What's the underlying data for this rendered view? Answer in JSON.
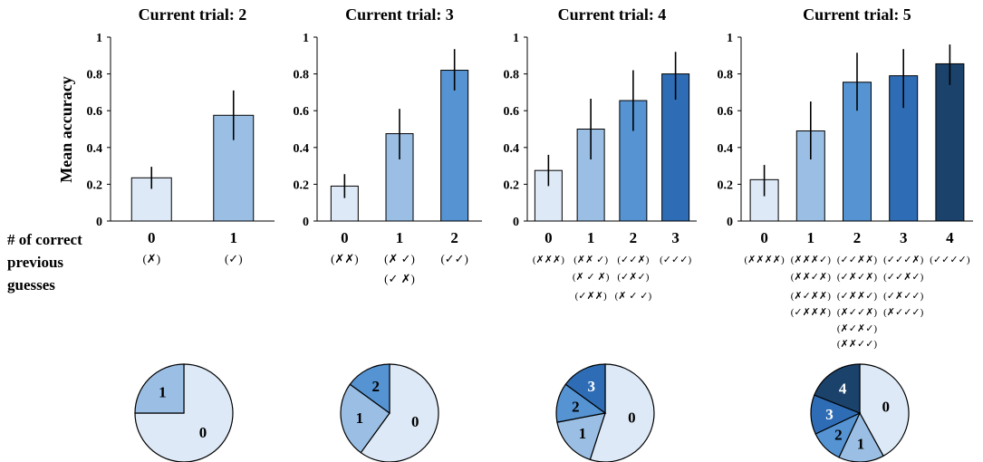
{
  "ylabel": "Mean accuracy",
  "row_label_lines": [
    "# of correct",
    "previous",
    "guesses"
  ],
  "yticks": [
    "0",
    "0.2",
    "0.4",
    "0.6",
    "0.8",
    "1"
  ],
  "colors": {
    "level0": "#dde9f7",
    "level1": "#9bbfe4",
    "level2": "#5593d2",
    "level3": "#2e6db5",
    "level4": "#1b426b",
    "outline": "#000000"
  },
  "chart_data": [
    {
      "type": "bar",
      "title": "Current trial: 2",
      "categories": [
        "0",
        "1"
      ],
      "values": [
        0.235,
        0.575
      ],
      "error_low": [
        0.175,
        0.44
      ],
      "error_high": [
        0.295,
        0.71
      ],
      "ylim": [
        0,
        1
      ],
      "patterns": [
        [
          "(✗)"
        ],
        [
          "(✓)"
        ]
      ],
      "pie": {
        "type": "pie",
        "labels": [
          "0",
          "1"
        ],
        "values": [
          75,
          25
        ]
      }
    },
    {
      "type": "bar",
      "title": "Current trial: 3",
      "categories": [
        "0",
        "1",
        "2"
      ],
      "values": [
        0.19,
        0.475,
        0.82
      ],
      "error_low": [
        0.125,
        0.335,
        0.71
      ],
      "error_high": [
        0.255,
        0.61,
        0.935
      ],
      "ylim": [
        0,
        1
      ],
      "patterns": [
        [
          "(✗✗)"
        ],
        [
          "(✗ ✓)",
          "(✓ ✗)"
        ],
        [
          "(✓✓)"
        ]
      ],
      "pie": {
        "type": "pie",
        "labels": [
          "0",
          "1",
          "2"
        ],
        "values": [
          60,
          25,
          15
        ]
      }
    },
    {
      "type": "bar",
      "title": "Current trial: 4",
      "categories": [
        "0",
        "1",
        "2",
        "3"
      ],
      "values": [
        0.275,
        0.5,
        0.655,
        0.8
      ],
      "error_low": [
        0.19,
        0.335,
        0.49,
        0.66
      ],
      "error_high": [
        0.36,
        0.665,
        0.82,
        0.92
      ],
      "ylim": [
        0,
        1
      ],
      "patterns": [
        [
          "(✗✗✗)"
        ],
        [
          "(✗✗ ✓)",
          "(✗ ✓ ✗)",
          "(✓✗✗)"
        ],
        [
          "(✓✓✗)",
          "(✓✗✓)",
          "(✗ ✓ ✓)"
        ],
        [
          "(✓✓✓)"
        ]
      ],
      "pie": {
        "type": "pie",
        "labels": [
          "0",
          "1",
          "2",
          "3"
        ],
        "values": [
          55,
          17,
          13,
          15
        ]
      }
    },
    {
      "type": "bar",
      "title": "Current trial: 5",
      "categories": [
        "0",
        "1",
        "2",
        "3",
        "4"
      ],
      "values": [
        0.225,
        0.49,
        0.755,
        0.79,
        0.855
      ],
      "error_low": [
        0.135,
        0.335,
        0.6,
        0.615,
        0.74
      ],
      "error_high": [
        0.305,
        0.65,
        0.915,
        0.935,
        0.96
      ],
      "ylim": [
        0,
        1
      ],
      "patterns": [
        [
          "(✗✗✗✗)"
        ],
        [
          "(✗✗✗✓)",
          "(✗✗✓✗)",
          "(✗✓✗✗)",
          "(✓✗✗✗)"
        ],
        [
          "(✓✓✗✗)",
          "(✓✗✓✗)",
          "(✓✗✗✓)",
          "(✗✓✓✗)",
          "(✗✓✗✓)",
          "(✗✗✓✓)"
        ],
        [
          "(✓✓✓✗)",
          "(✓✓✗✓)",
          "(✓✗✓✓)",
          "(✗✓✓✓)"
        ],
        [
          "(✓✓✓✓)"
        ]
      ],
      "pie": {
        "type": "pie",
        "labels": [
          "0",
          "1",
          "2",
          "3",
          "4"
        ],
        "values": [
          42,
          15,
          11,
          13,
          19
        ]
      }
    }
  ]
}
